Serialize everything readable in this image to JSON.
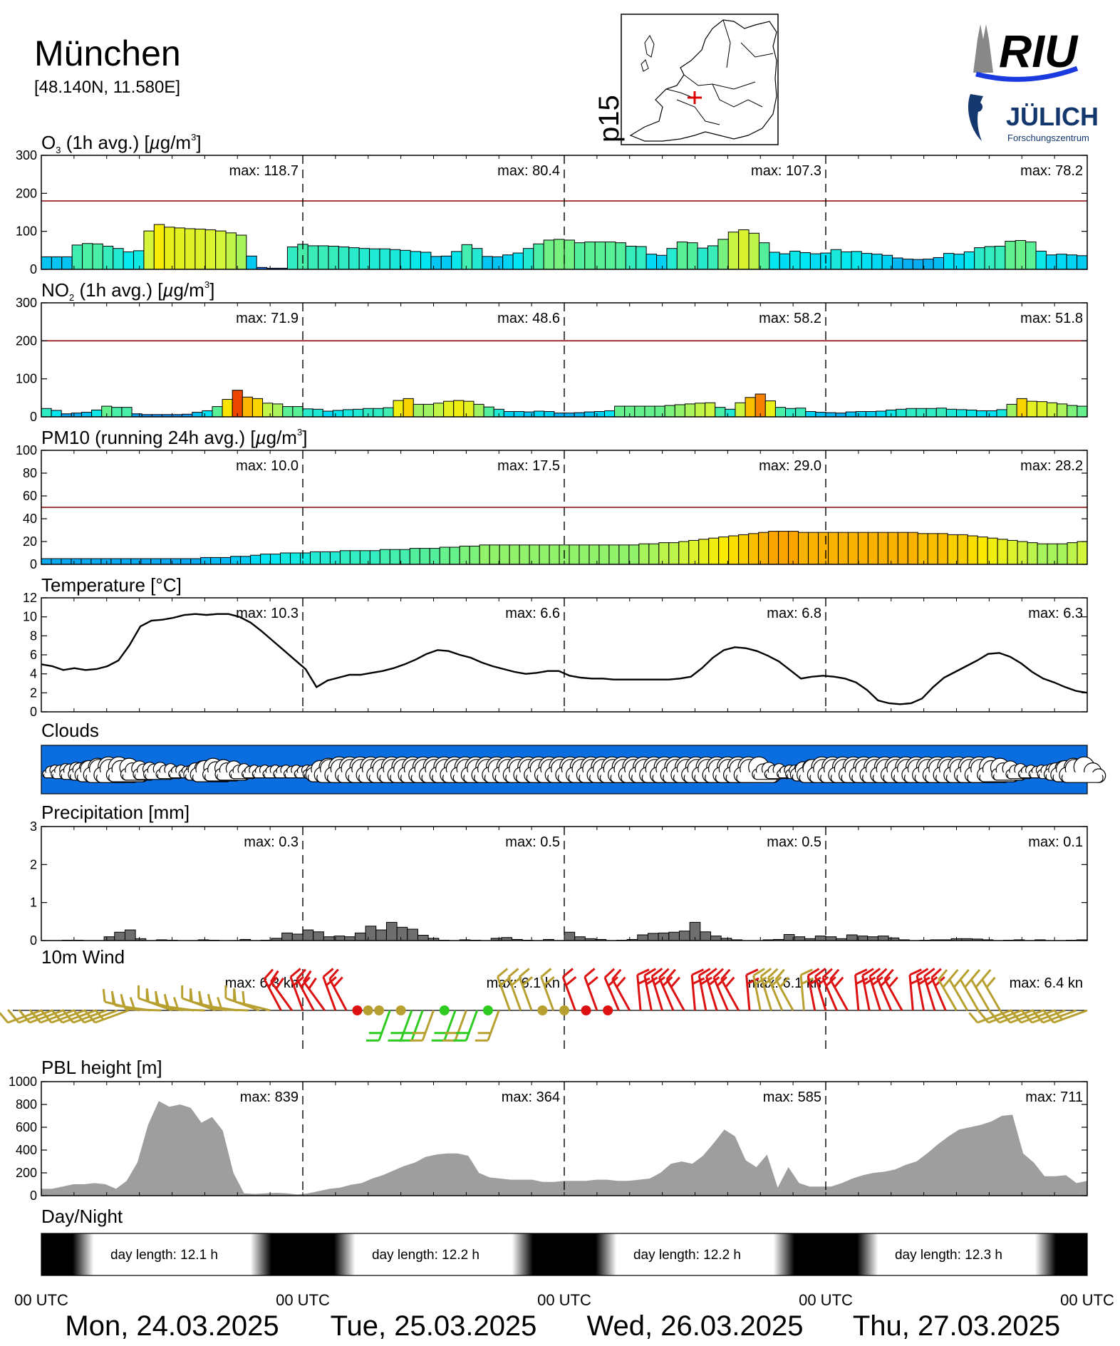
{
  "header": {
    "city": "München",
    "coords": "[48.140N, 11.580E]",
    "map_label": "p15",
    "logo_top": "RIU",
    "logo_bottom": "JÜLICH",
    "logo_sub": "Forschungszentrum"
  },
  "colors": {
    "limit_line": "#8b0000",
    "wind_low": "#2ecc20",
    "wind_mid": "#b8a030",
    "wind_high": "#dd1111",
    "clouds_bg": "#0a6ee0",
    "pbl_fill": "#9e9e9e",
    "precip_fill": "#6e6e6e"
  },
  "day_labels": [
    "Mon, 24.03.2025",
    "Tue, 25.03.2025",
    "Wed, 26.03.2025",
    "Thu, 27.03.2025"
  ],
  "utc_label": "00 UTC",
  "chart_data": [
    {
      "id": "o3",
      "type": "bar",
      "title": "O3 (1h avg.) [µg/m³]",
      "unit": "µg/m³",
      "ylim": [
        0,
        300
      ],
      "yticks": [
        0,
        100,
        200,
        300
      ],
      "limit": 180,
      "max_labels": [
        "max: 118.7",
        "max:  80.4",
        "max: 107.3",
        "max:  78.2"
      ],
      "values": [
        33,
        33,
        33,
        64,
        68,
        67,
        61,
        55,
        46,
        49,
        101,
        118,
        111,
        109,
        107,
        106,
        104,
        101,
        96,
        90,
        35,
        5,
        3,
        3,
        59,
        66,
        62,
        62,
        61,
        59,
        57,
        55,
        54,
        54,
        52,
        50,
        47,
        45,
        34,
        35,
        47,
        65,
        55,
        34,
        33,
        38,
        43,
        55,
        67,
        77,
        79,
        77,
        70,
        72,
        72,
        72,
        70,
        61,
        60,
        40,
        37,
        55,
        72,
        70,
        56,
        62,
        79,
        98,
        104,
        95,
        70,
        45,
        41,
        48,
        44,
        41,
        43,
        52,
        46,
        47,
        42,
        40,
        37,
        30,
        27,
        26,
        27,
        31,
        42,
        40,
        46,
        57,
        60,
        61,
        74,
        76,
        72,
        48,
        38,
        40,
        38,
        36
      ]
    },
    {
      "id": "no2",
      "type": "bar",
      "title": "NO2 (1h avg.) [µg/m³]",
      "unit": "µg/m³",
      "ylim": [
        0,
        300
      ],
      "yticks": [
        0,
        100,
        200,
        300
      ],
      "limit": 200,
      "max_labels": [
        "max:  71.9",
        "max:  48.6",
        "max:  58.2",
        "max:  51.8"
      ],
      "values": [
        22,
        17,
        8,
        10,
        12,
        18,
        28,
        25,
        25,
        8,
        6,
        6,
        6,
        6,
        7,
        12,
        16,
        27,
        46,
        70,
        52,
        48,
        36,
        34,
        27,
        27,
        21,
        20,
        15,
        17,
        19,
        20,
        22,
        22,
        24,
        43,
        48,
        33,
        33,
        36,
        41,
        43,
        41,
        33,
        26,
        20,
        14,
        14,
        13,
        15,
        14,
        10,
        10,
        11,
        13,
        14,
        16,
        28,
        28,
        28,
        28,
        28,
        30,
        32,
        34,
        36,
        37,
        25,
        20,
        37,
        51,
        60,
        42,
        25,
        22,
        23,
        14,
        12,
        11,
        10,
        13,
        14,
        14,
        15,
        18,
        20,
        22,
        22,
        22,
        23,
        20,
        19,
        18,
        16,
        16,
        19,
        33,
        48,
        41,
        40,
        37,
        34,
        30,
        28
      ]
    },
    {
      "id": "pm10",
      "type": "bar",
      "title": "PM10 (running 24h avg.) [µg/m³]",
      "unit": "µg/m³",
      "ylim": [
        0,
        100
      ],
      "yticks": [
        0,
        20,
        40,
        60,
        80,
        100
      ],
      "limit": 50,
      "max_labels": [
        "max:  10.0",
        "max:  17.5",
        "max:  29.0",
        "max:  28.2"
      ],
      "values": [
        5,
        5,
        5,
        5,
        5,
        5,
        5,
        5,
        5,
        5,
        5,
        5,
        5,
        5,
        5,
        5,
        6,
        6,
        6,
        7,
        7,
        8,
        9,
        9,
        10,
        10,
        10,
        11,
        11,
        11,
        12,
        12,
        12,
        12,
        13,
        13,
        13,
        14,
        14,
        14,
        15,
        15,
        16,
        16,
        17,
        17,
        17,
        17,
        17,
        17,
        17,
        17,
        17,
        17,
        17,
        17,
        17,
        17,
        17,
        17,
        18,
        18,
        19,
        19,
        20,
        21,
        22,
        23,
        24,
        25,
        26,
        27,
        28,
        29,
        29,
        29,
        28,
        28,
        28,
        28,
        28,
        28,
        28,
        28,
        28,
        28,
        28,
        28,
        27,
        27,
        27,
        26,
        26,
        25,
        24,
        23,
        22,
        21,
        20,
        19,
        18,
        18,
        18,
        19,
        20
      ]
    },
    {
      "id": "temperature",
      "type": "line",
      "title": "Temperature [°C]",
      "unit": "°C",
      "ylim": [
        0,
        12
      ],
      "yticks": [
        0,
        2,
        4,
        6,
        8,
        10,
        12
      ],
      "max_labels": [
        "max:  10.3",
        "max:   6.6",
        "max:   6.8",
        "max:   6.3"
      ],
      "values": [
        5,
        4.8,
        4.4,
        4.6,
        4.4,
        4.5,
        4.8,
        5.4,
        7,
        9,
        9.6,
        9.7,
        9.9,
        10.2,
        10.3,
        10.2,
        10.3,
        10.3,
        10,
        9.4,
        8.5,
        7.5,
        6.5,
        5.5,
        4.5,
        2.6,
        3.3,
        3.6,
        3.9,
        3.9,
        4.1,
        4.3,
        4.6,
        5,
        5.5,
        6.1,
        6.5,
        6.4,
        6,
        5.7,
        5.2,
        4.8,
        4.5,
        4.2,
        4,
        4.1,
        4.3,
        4.3,
        3.8,
        3.6,
        3.5,
        3.5,
        3.4,
        3.4,
        3.4,
        3.4,
        3.4,
        3.4,
        3.5,
        3.7,
        4.6,
        5.7,
        6.5,
        6.8,
        6.7,
        6.4,
        5.9,
        5.3,
        4.4,
        3.5,
        3.7,
        3.8,
        3.7,
        3.5,
        3.1,
        2.3,
        1.2,
        0.9,
        0.8,
        0.9,
        1.4,
        2.6,
        3.6,
        4.2,
        4.8,
        5.4,
        6.1,
        6.2,
        5.8,
        5.1,
        4.2,
        3.5,
        3.1,
        2.6,
        2.2,
        2
      ]
    },
    {
      "id": "precipitation",
      "type": "bar",
      "title": "Precipitation [mm]",
      "unit": "mm",
      "ylim": [
        0,
        3
      ],
      "yticks": [
        0,
        1,
        2,
        3
      ],
      "max_labels": [
        "max:   0.3",
        "max:   0.5",
        "max:   0.5",
        "max:   0.1"
      ],
      "values": [
        0,
        0,
        0.01,
        0.01,
        0,
        0,
        0.1,
        0.22,
        0.28,
        0.05,
        0,
        0.02,
        0.01,
        0,
        0,
        0.02,
        0.01,
        0,
        0,
        0.03,
        0,
        0.01,
        0.06,
        0.2,
        0.17,
        0.28,
        0.23,
        0.1,
        0.12,
        0.1,
        0.2,
        0.38,
        0.28,
        0.48,
        0.35,
        0.3,
        0.14,
        0.06,
        0.01,
        0,
        0.02,
        0.01,
        0,
        0.06,
        0.08,
        0.03,
        0.01,
        0,
        0.03,
        0,
        0.22,
        0.1,
        0.05,
        0.03,
        0,
        0.01,
        0.03,
        0.15,
        0.19,
        0.2,
        0.22,
        0.25,
        0.48,
        0.23,
        0.12,
        0.06,
        0.02,
        0,
        0,
        0.02,
        0.03,
        0.16,
        0.1,
        0.05,
        0.12,
        0.1,
        0.05,
        0.15,
        0.12,
        0.1,
        0.12,
        0.07,
        0.02,
        0,
        0.01,
        0.02,
        0.02,
        0.05,
        0.05,
        0.04,
        0.02,
        0,
        0.01,
        0.02,
        0,
        0.02,
        0,
        0,
        0.01,
        0.02
      ]
    },
    {
      "id": "pbl",
      "type": "area",
      "title": "PBL height [m]",
      "unit": "m",
      "ylim": [
        0,
        1000
      ],
      "yticks": [
        0,
        200,
        400,
        600,
        800,
        1000
      ],
      "max_labels": [
        "max:  839",
        "max:  364",
        "max:  585",
        "max:  711"
      ],
      "values": [
        60,
        60,
        80,
        100,
        100,
        110,
        100,
        60,
        130,
        290,
        620,
        830,
        780,
        800,
        770,
        640,
        690,
        570,
        200,
        20,
        15,
        20,
        25,
        20,
        10,
        20,
        40,
        60,
        70,
        95,
        110,
        150,
        180,
        220,
        260,
        290,
        340,
        360,
        370,
        370,
        350,
        200,
        160,
        150,
        140,
        140,
        140,
        120,
        120,
        130,
        130,
        130,
        140,
        140,
        130,
        130,
        140,
        150,
        200,
        280,
        300,
        280,
        350,
        460,
        580,
        520,
        310,
        250,
        360,
        70,
        250,
        110,
        80,
        80,
        80,
        110,
        150,
        180,
        200,
        210,
        230,
        270,
        300,
        370,
        450,
        520,
        580,
        600,
        620,
        650,
        700,
        710,
        370,
        290,
        170,
        170,
        180,
        110,
        130
      ]
    }
  ],
  "sections": {
    "clouds_title": "Clouds",
    "wind_title": "10m Wind",
    "wind_max_labels": [
      "max:   6.3 kn",
      "max:   6.1 kn",
      "max:   6.1 kn",
      "max:   6.4 kn"
    ],
    "daynight_title": "Day/Night",
    "day_lengths": [
      "day length:  12.1 h",
      "day length:  12.2 h",
      "day length:  12.2 h",
      "day length:  12.3 h"
    ]
  }
}
